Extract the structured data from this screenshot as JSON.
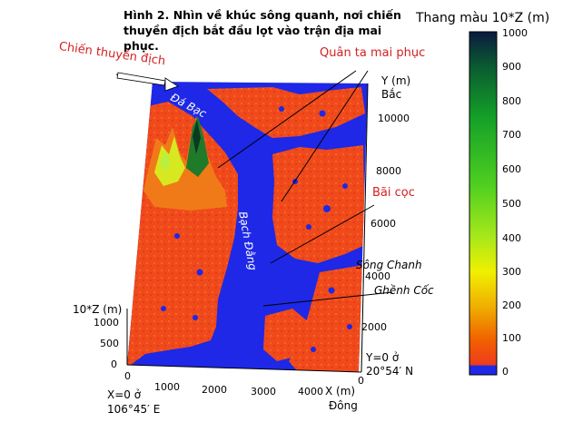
{
  "figure": {
    "title_line1": "Hình 2. Nhìn về khúc sông quanh, nơi chiến",
    "title_line2": "thuyền địch bắt đầu lọt vào trận địa mai phục."
  },
  "colorbar": {
    "title": "Thang màu 10*Z (m)",
    "ticks": [
      "1000",
      "900",
      "800",
      "700",
      "600",
      "500",
      "400",
      "300",
      "200",
      "100",
      "0"
    ],
    "colors": [
      "#0a1a40",
      "#0a5a30",
      "#14a028",
      "#50d020",
      "#a8e81a",
      "#f0f000",
      "#f0b000",
      "#f06000",
      "#f03c1c",
      "#1e28e6"
    ]
  },
  "annotations": {
    "enemy_boats": "Chiến thuyền địch",
    "ambush": "Quân ta mai phục",
    "stakes": "Bãi cọc",
    "da_bac": "Đá Bạc",
    "bach_dang": "Bạch Đằng",
    "song_chanh": "Sông Chanh",
    "ghenh_coc": "Ghềnh Cốc"
  },
  "axes": {
    "y_axis_label": "Y (m)",
    "north_label": "Bắc",
    "y_ticks": [
      "10000",
      "8000",
      "6000",
      "4000",
      "2000",
      "0"
    ],
    "z_axis_label": "10*Z (m)",
    "z_ticks": [
      "1000",
      "500",
      "0"
    ],
    "x_axis_label": "X (m)",
    "east_label": "Đông",
    "x_ticks": [
      "0",
      "1000",
      "2000",
      "3000",
      "4000"
    ],
    "x_origin_line1": "X=0 ở",
    "x_origin_line2": "106°45′ E",
    "y_origin_line1": "Y=0 ở",
    "y_origin_line2": "20°54′ N"
  },
  "colors": {
    "water": "#1e28e6",
    "land": "#f04a1c",
    "label_red": "#d42020"
  }
}
